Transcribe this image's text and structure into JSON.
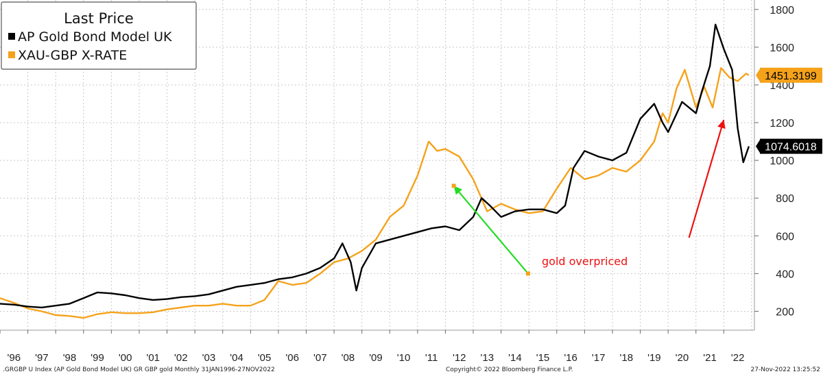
{
  "chart_data": {
    "type": "line",
    "legend": {
      "title": "Last Price",
      "placement": "top-left"
    },
    "grid": true,
    "yaxis": {
      "side": "right",
      "ylim": [
        100,
        1850
      ],
      "ticks": [
        200,
        400,
        600,
        800,
        1000,
        1200,
        1400,
        1600,
        1800
      ]
    },
    "xaxis": {
      "xlim": [
        1996.0,
        2023.1
      ],
      "tick_labels": [
        "'96",
        "'97",
        "'98",
        "'99",
        "'00",
        "'01",
        "'02",
        "'03",
        "'04",
        "'05",
        "'06",
        "'07",
        "'08",
        "'09",
        "'10",
        "'11",
        "'12",
        "'13",
        "'14",
        "'15",
        "'16",
        "'17",
        "'18",
        "'19",
        "'20",
        "'21",
        "'22"
      ]
    },
    "series": [
      {
        "name": "AP Gold Bond Model UK",
        "color": "#000000",
        "last_value": "1074.6018",
        "x": [
          1996.0,
          1996.5,
          1997.0,
          1997.5,
          1998.0,
          1998.5,
          1999.0,
          1999.5,
          2000.0,
          2000.5,
          2001.0,
          2001.5,
          2002.0,
          2002.5,
          2003.0,
          2003.5,
          2004.0,
          2004.5,
          2005.0,
          2005.5,
          2006.0,
          2006.5,
          2007.0,
          2007.5,
          2008.0,
          2008.3,
          2008.6,
          2008.8,
          2009.0,
          2009.5,
          2010.0,
          2010.5,
          2011.0,
          2011.5,
          2012.0,
          2012.5,
          2013.0,
          2013.3,
          2013.6,
          2014.0,
          2014.5,
          2015.0,
          2015.5,
          2016.0,
          2016.3,
          2016.6,
          2017.0,
          2017.5,
          2018.0,
          2018.5,
          2019.0,
          2019.5,
          2019.8,
          2020.0,
          2020.5,
          2021.0,
          2021.2,
          2021.5,
          2021.7,
          2022.0,
          2022.3,
          2022.5,
          2022.7,
          2022.9
        ],
        "y": [
          240,
          235,
          225,
          220,
          230,
          240,
          270,
          300,
          295,
          285,
          270,
          260,
          265,
          275,
          280,
          290,
          310,
          330,
          340,
          350,
          370,
          380,
          400,
          430,
          480,
          560,
          460,
          310,
          430,
          560,
          580,
          600,
          620,
          640,
          650,
          630,
          700,
          800,
          760,
          700,
          730,
          740,
          740,
          720,
          760,
          960,
          1050,
          1020,
          1000,
          1040,
          1220,
          1300,
          1200,
          1150,
          1310,
          1250,
          1360,
          1500,
          1720,
          1590,
          1480,
          1170,
          990,
          1074.6
        ]
      },
      {
        "name": "XAU-GBP X-RATE",
        "color": "#f5a21b",
        "last_value": "1451.3199",
        "x": [
          1996.0,
          1996.5,
          1997.0,
          1997.5,
          1998.0,
          1998.5,
          1999.0,
          1999.5,
          2000.0,
          2000.5,
          2001.0,
          2001.5,
          2002.0,
          2002.5,
          2003.0,
          2003.5,
          2004.0,
          2004.5,
          2005.0,
          2005.5,
          2006.0,
          2006.5,
          2007.0,
          2007.5,
          2008.0,
          2008.5,
          2009.0,
          2009.5,
          2010.0,
          2010.5,
          2011.0,
          2011.4,
          2011.7,
          2012.0,
          2012.5,
          2013.0,
          2013.5,
          2014.0,
          2014.5,
          2015.0,
          2015.5,
          2016.0,
          2016.5,
          2017.0,
          2017.5,
          2018.0,
          2018.5,
          2019.0,
          2019.5,
          2019.8,
          2020.0,
          2020.3,
          2020.6,
          2021.0,
          2021.3,
          2021.6,
          2021.9,
          2022.2,
          2022.5,
          2022.8,
          2022.9
        ],
        "y": [
          270,
          245,
          215,
          200,
          180,
          175,
          165,
          185,
          195,
          190,
          190,
          195,
          210,
          220,
          230,
          230,
          240,
          230,
          230,
          260,
          360,
          340,
          350,
          400,
          460,
          480,
          520,
          580,
          700,
          760,
          920,
          1100,
          1050,
          1060,
          1020,
          900,
          730,
          770,
          740,
          720,
          730,
          850,
          960,
          900,
          920,
          960,
          940,
          1000,
          1100,
          1250,
          1200,
          1380,
          1480,
          1280,
          1390,
          1280,
          1490,
          1440,
          1420,
          1460,
          1451.3
        ]
      }
    ],
    "annotations": [
      {
        "text": "gold overpriced",
        "color": "#ee1111"
      }
    ],
    "arrows": [
      {
        "color": "#22dd22",
        "x1": 2014.97,
        "y1": 400,
        "x2": 2012.3,
        "y2": 865
      },
      {
        "color": "#ee1111",
        "x1": 2020.75,
        "y1": 590,
        "x2": 2022.0,
        "y2": 1215
      }
    ],
    "footer": {
      "left": ".GRGBP U Index (AP Gold Bond Model UK) GR GBP gold  Monthly 31JAN1996-27NOV2022",
      "center": "Copyright© 2022 Bloomberg Finance L.P.",
      "right": "27-Nov-2022 13:25:52"
    }
  }
}
